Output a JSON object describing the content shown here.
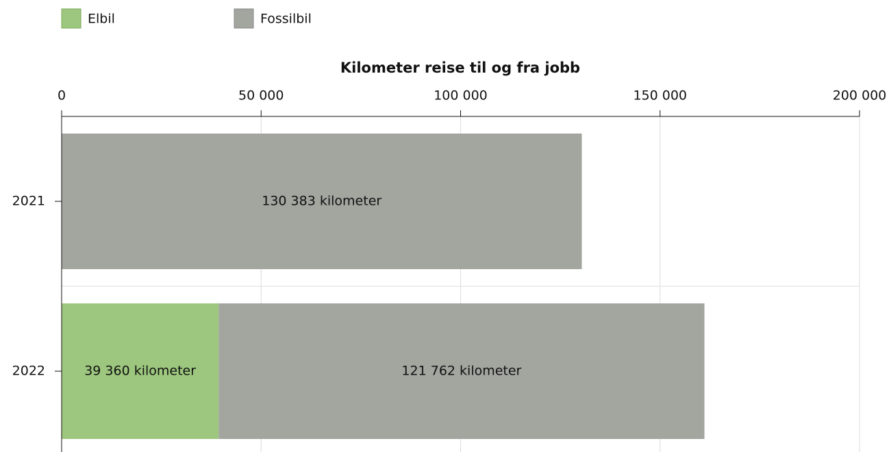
{
  "chart_data": {
    "type": "stacked-bar-horizontal",
    "title": "Kilometer reise til og fra jobb",
    "categories": [
      "2021",
      "2022"
    ],
    "series": [
      {
        "name": "Elbil",
        "color": "#9dc77e",
        "values": [
          null,
          39360
        ],
        "value_labels": [
          null,
          "39 360 kilometer"
        ]
      },
      {
        "name": "Fossilbil",
        "color": "#a3a59f",
        "values": [
          130383,
          121762
        ],
        "value_labels": [
          "130 383 kilometer",
          "121 762 kilometer"
        ]
      }
    ],
    "xlim": [
      0,
      200000
    ],
    "xticks": [
      0,
      {
        "value": 50000,
        "label": "50 000"
      },
      {
        "value": 100000,
        "label": "100 000"
      },
      {
        "value": 150000,
        "label": "150 000"
      },
      {
        "value": 200000,
        "label": "200 000"
      }
    ],
    "grid": true,
    "legend": "top-left"
  }
}
